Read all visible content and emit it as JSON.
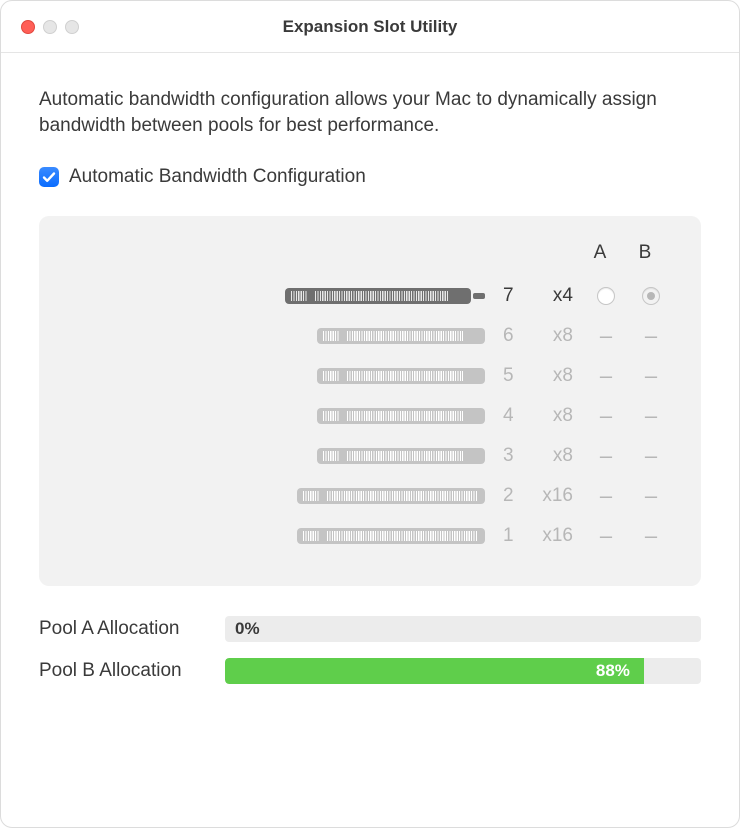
{
  "window": {
    "title": "Expansion Slot Utility"
  },
  "description": "Automatic bandwidth configuration allows your Mac to dynamically assign bandwidth between pools for best performance.",
  "checkbox": {
    "label": "Automatic Bandwidth Configuration",
    "checked": true
  },
  "panel": {
    "background_color": "#f2f2f2",
    "columns": {
      "a": "A",
      "b": "B"
    },
    "slots": [
      {
        "num": "7",
        "lanes": "x4",
        "active": true,
        "a": "radio-empty",
        "b": "radio-selected",
        "graphic": "x4"
      },
      {
        "num": "6",
        "lanes": "x8",
        "active": false,
        "a": "dash",
        "b": "dash",
        "graphic": "x8"
      },
      {
        "num": "5",
        "lanes": "x8",
        "active": false,
        "a": "dash",
        "b": "dash",
        "graphic": "x8"
      },
      {
        "num": "4",
        "lanes": "x8",
        "active": false,
        "a": "dash",
        "b": "dash",
        "graphic": "x8"
      },
      {
        "num": "3",
        "lanes": "x8",
        "active": false,
        "a": "dash",
        "b": "dash",
        "graphic": "x8"
      },
      {
        "num": "2",
        "lanes": "x16",
        "active": false,
        "a": "dash",
        "b": "dash",
        "graphic": "x16"
      },
      {
        "num": "1",
        "lanes": "x16",
        "active": false,
        "a": "dash",
        "b": "dash",
        "graphic": "x16"
      }
    ]
  },
  "allocations": {
    "a": {
      "label": "Pool A Allocation",
      "percent": 0,
      "display": "0%",
      "fill_color": "#5fce4b",
      "track_color": "#ececec"
    },
    "b": {
      "label": "Pool B Allocation",
      "percent": 88,
      "display": "88%",
      "fill_color": "#5fce4b",
      "track_color": "#ececec"
    }
  },
  "colors": {
    "accent_checkbox": "#0a6cff",
    "text": "#3a3a3a",
    "muted": "#b7b7b7",
    "slot_dark": "#6f6f6f",
    "slot_light": "#c4c4c4",
    "traffic_red": "#ff5f57",
    "traffic_disabled": "#e6e6e6"
  }
}
